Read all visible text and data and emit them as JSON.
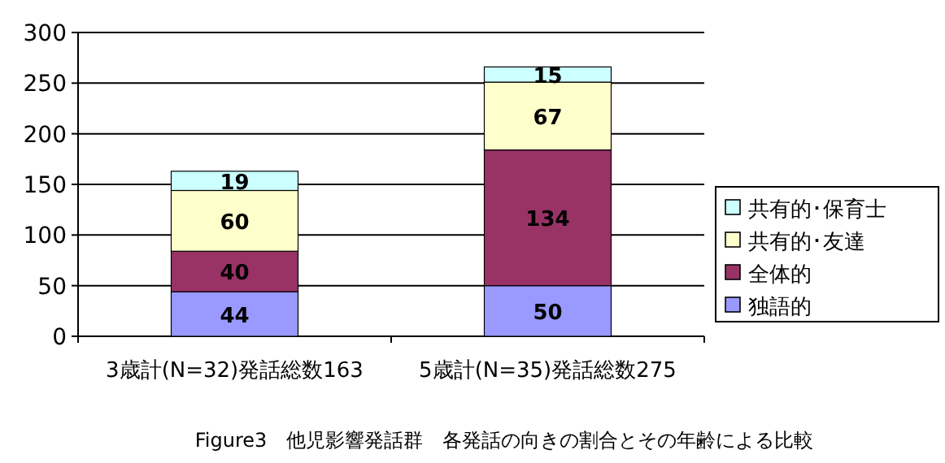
{
  "chart_data": {
    "type": "bar",
    "stacked": true,
    "data_labels": true,
    "grid": "y",
    "legend": "right",
    "categories": [
      "3歳計(N=32)発話総数163",
      "5歳計(N=35)発話総数275"
    ],
    "series": [
      {
        "name": "独語的",
        "color": "#9999ff",
        "values": [
          44,
          50
        ]
      },
      {
        "name": "全体的",
        "color": "#993366",
        "values": [
          40,
          134
        ]
      },
      {
        "name": "共有的･友達",
        "color": "#ffffcc",
        "values": [
          60,
          67
        ]
      },
      {
        "name": "共有的･保育士",
        "color": "#ccffff",
        "values": [
          19,
          15
        ]
      }
    ],
    "ylim": [
      0,
      300
    ],
    "yticks": [
      0,
      50,
      100,
      150,
      200,
      250,
      300
    ],
    "annotations": [
      "Figure3　他児影響発話群　各発話の向きの割合とその年齢による比較"
    ]
  }
}
